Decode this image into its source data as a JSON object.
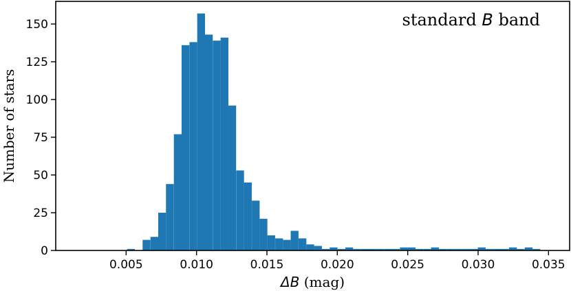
{
  "chart_data": {
    "type": "bar",
    "title": "",
    "annotation": {
      "prefix": "standard ",
      "italic": "B",
      "suffix": " band"
    },
    "xlabel": {
      "italic": "ΔB",
      "suffix": "  (mag)"
    },
    "ylabel": "Number of stars",
    "xlim": [
      0.0,
      0.0365
    ],
    "ylim": [
      0,
      165
    ],
    "xticks": [
      0.005,
      0.01,
      0.015,
      0.02,
      0.025,
      0.03,
      0.035
    ],
    "xtick_labels": [
      "0.005",
      "0.010",
      "0.015",
      "0.020",
      "0.025",
      "0.030",
      "0.035"
    ],
    "yticks": [
      0,
      25,
      50,
      75,
      100,
      125,
      150
    ],
    "ytick_labels": [
      "0",
      "25",
      "50",
      "75",
      "100",
      "125",
      "150"
    ],
    "bin_width": 0.000553,
    "bin_starts": [
      0.00396,
      0.00451,
      0.00507,
      0.00562,
      0.00617,
      0.00673,
      0.00728,
      0.00783,
      0.00839,
      0.00894,
      0.0095,
      0.01005,
      0.0106,
      0.01116,
      0.01171,
      0.01226,
      0.01282,
      0.01337,
      0.01393,
      0.01448,
      0.01503,
      0.01559,
      0.01614,
      0.01669,
      0.01725,
      0.0178,
      0.01835,
      0.01891,
      0.01946,
      0.02002,
      0.02057,
      0.02112,
      0.02168,
      0.02223,
      0.02278,
      0.02334,
      0.02389,
      0.02445,
      0.025,
      0.02555,
      0.02611,
      0.02666,
      0.02721,
      0.02777,
      0.02832,
      0.02888,
      0.02943,
      0.02998,
      0.03054,
      0.03109,
      0.03164,
      0.0322,
      0.03275,
      0.03331,
      0.03386
    ],
    "counts": [
      0,
      0,
      1,
      0,
      7,
      9,
      25,
      44,
      77,
      136,
      138,
      157,
      143,
      139,
      141,
      96,
      53,
      45,
      33,
      21,
      10,
      8,
      7,
      13,
      8,
      4,
      3,
      1,
      2,
      1,
      2,
      1,
      1,
      1,
      1,
      1,
      1,
      2,
      2,
      1,
      1,
      2,
      1,
      1,
      1,
      1,
      1,
      2,
      1,
      1,
      1,
      2,
      1,
      2,
      1
    ],
    "bar_color": "#1f77b4",
    "grid": false
  }
}
